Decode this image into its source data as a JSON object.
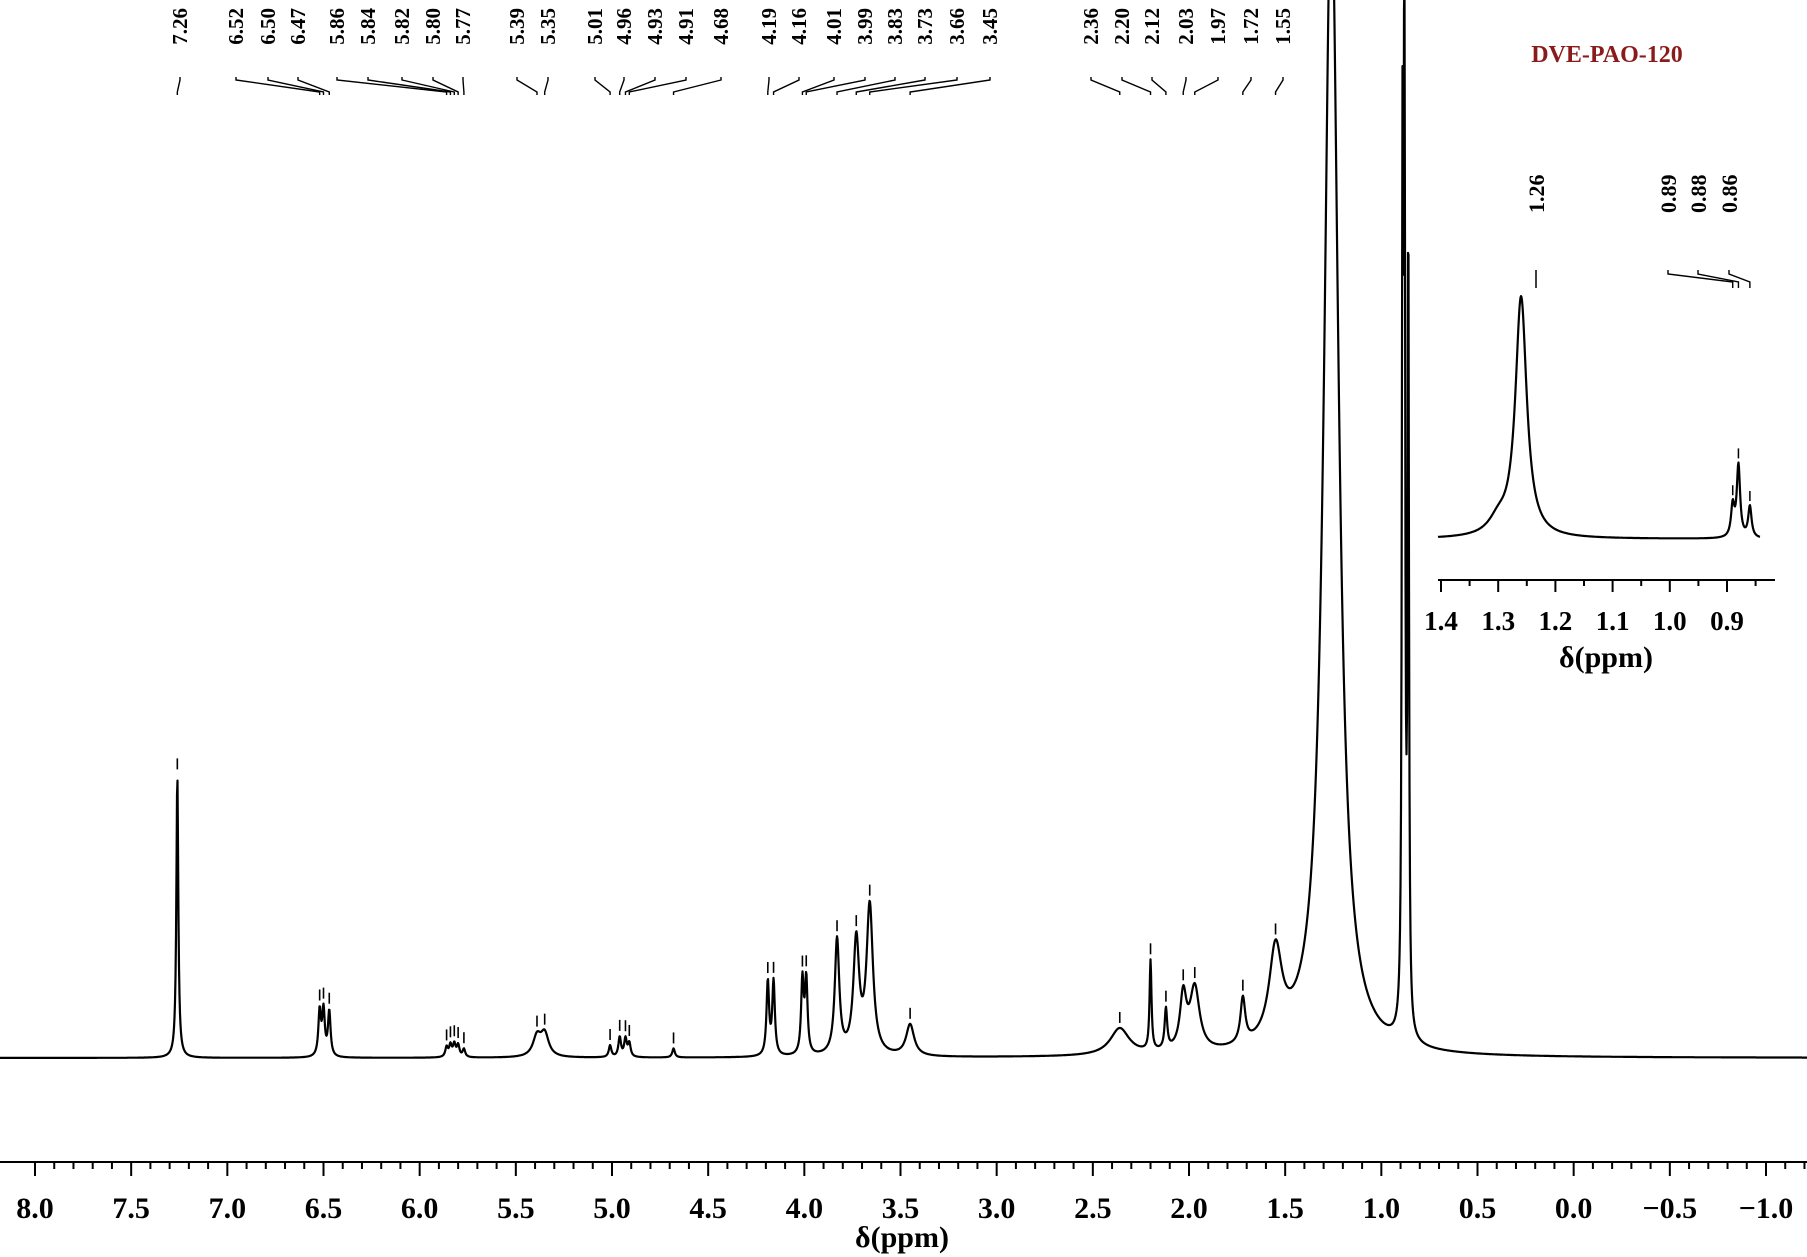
{
  "chart_data": [
    {
      "type": "line",
      "title": "DVE-PAO-120",
      "title_color": "#8b1a1a",
      "xlabel": "δ(ppm)",
      "ylabel": "",
      "x_axis_reversed": true,
      "xlim": [
        8.2,
        -1.2
      ],
      "x_ticks": [
        "8.0",
        "7.5",
        "7.0",
        "6.5",
        "6.0",
        "5.5",
        "5.0",
        "4.5",
        "4.0",
        "3.5",
        "3.0",
        "2.5",
        "2.0",
        "1.5",
        "1.0",
        "0.5",
        "0.0",
        "−0.5",
        "−1.0"
      ],
      "x_tick_values": [
        8.0,
        7.5,
        7.0,
        6.5,
        6.0,
        5.5,
        5.0,
        4.5,
        4.0,
        3.5,
        3.0,
        2.5,
        2.0,
        1.5,
        1.0,
        0.5,
        0.0,
        -0.5,
        -1.0
      ],
      "grid": false,
      "line_color": "#000000",
      "peak_labels": [
        "7.26",
        "6.52",
        "6.50",
        "6.47",
        "5.86",
        "5.84",
        "5.82",
        "5.80",
        "5.77",
        "5.39",
        "5.35",
        "5.01",
        "4.96",
        "4.93",
        "4.91",
        "4.68",
        "4.19",
        "4.16",
        "4.01",
        "3.99",
        "3.83",
        "3.73",
        "3.66",
        "3.45",
        "2.36",
        "2.20",
        "2.12",
        "2.03",
        "1.97",
        "1.72",
        "1.55"
      ],
      "peak_positions": [
        7.26,
        6.52,
        6.5,
        6.47,
        5.86,
        5.84,
        5.82,
        5.8,
        5.77,
        5.39,
        5.35,
        5.01,
        4.96,
        4.93,
        4.91,
        4.68,
        4.19,
        4.16,
        4.01,
        3.99,
        3.83,
        3.73,
        3.66,
        3.45,
        2.36,
        2.2,
        2.12,
        2.03,
        1.97,
        1.72,
        1.55
      ],
      "peaks": [
        {
          "shift": 7.26,
          "intensity": 0.315,
          "width": 0.006
        },
        {
          "shift": 6.52,
          "intensity": 0.05,
          "width": 0.008
        },
        {
          "shift": 6.5,
          "intensity": 0.05,
          "width": 0.008
        },
        {
          "shift": 6.47,
          "intensity": 0.05,
          "width": 0.008
        },
        {
          "shift": 5.86,
          "intensity": 0.011,
          "width": 0.008
        },
        {
          "shift": 5.84,
          "intensity": 0.013,
          "width": 0.008
        },
        {
          "shift": 5.82,
          "intensity": 0.014,
          "width": 0.008
        },
        {
          "shift": 5.8,
          "intensity": 0.013,
          "width": 0.008
        },
        {
          "shift": 5.77,
          "intensity": 0.009,
          "width": 0.008
        },
        {
          "shift": 5.39,
          "intensity": 0.022,
          "width": 0.025
        },
        {
          "shift": 5.35,
          "intensity": 0.025,
          "width": 0.025
        },
        {
          "shift": 5.01,
          "intensity": 0.013,
          "width": 0.008
        },
        {
          "shift": 4.96,
          "intensity": 0.022,
          "width": 0.008
        },
        {
          "shift": 4.93,
          "intensity": 0.02,
          "width": 0.008
        },
        {
          "shift": 4.91,
          "intensity": 0.015,
          "width": 0.008
        },
        {
          "shift": 4.68,
          "intensity": 0.01,
          "width": 0.008
        },
        {
          "shift": 4.19,
          "intensity": 0.082,
          "width": 0.008
        },
        {
          "shift": 4.16,
          "intensity": 0.082,
          "width": 0.008
        },
        {
          "shift": 4.01,
          "intensity": 0.082,
          "width": 0.008
        },
        {
          "shift": 3.99,
          "intensity": 0.082,
          "width": 0.008
        },
        {
          "shift": 3.83,
          "intensity": 0.128,
          "width": 0.014
        },
        {
          "shift": 3.73,
          "intensity": 0.125,
          "width": 0.018
        },
        {
          "shift": 3.66,
          "intensity": 0.165,
          "width": 0.02
        },
        {
          "shift": 3.45,
          "intensity": 0.035,
          "width": 0.025
        },
        {
          "shift": 2.36,
          "intensity": 0.03,
          "width": 0.06
        },
        {
          "shift": 2.2,
          "intensity": 0.1,
          "width": 0.006
        },
        {
          "shift": 2.12,
          "intensity": 0.045,
          "width": 0.008
        },
        {
          "shift": 2.03,
          "intensity": 0.06,
          "width": 0.02
        },
        {
          "shift": 1.97,
          "intensity": 0.07,
          "width": 0.03
        },
        {
          "shift": 1.72,
          "intensity": 0.05,
          "width": 0.015
        },
        {
          "shift": 1.55,
          "intensity": 0.1,
          "width": 0.04
        },
        {
          "shift": 1.26,
          "intensity": 1.3,
          "width": 0.045
        },
        {
          "shift": 0.89,
          "intensity": 0.9,
          "width": 0.004
        },
        {
          "shift": 0.88,
          "intensity": 1.2,
          "width": 0.004
        },
        {
          "shift": 0.86,
          "intensity": 0.9,
          "width": 0.004
        }
      ]
    },
    {
      "type": "line",
      "title": "",
      "xlabel": "δ(ppm)",
      "ylabel": "",
      "x_axis_reversed": true,
      "xlim": [
        1.42,
        0.83
      ],
      "x_ticks": [
        "1.4",
        "1.3",
        "1.2",
        "1.1",
        "1.0",
        "0.9"
      ],
      "x_tick_values": [
        1.4,
        1.3,
        1.2,
        1.1,
        1.0,
        0.9
      ],
      "grid": false,
      "line_color": "#000000",
      "peak_labels": [
        "1.26",
        "0.89",
        "0.88",
        "0.86"
      ],
      "peak_positions": [
        1.26,
        0.89,
        0.88,
        0.86
      ],
      "peaks": [
        {
          "shift": 1.26,
          "intensity": 1.0,
          "width": 0.012
        },
        {
          "shift": 1.3,
          "intensity": 0.06,
          "width": 0.02
        },
        {
          "shift": 0.89,
          "intensity": 0.13,
          "width": 0.0035
        },
        {
          "shift": 0.88,
          "intensity": 0.3,
          "width": 0.0035
        },
        {
          "shift": 0.86,
          "intensity": 0.13,
          "width": 0.0035
        }
      ]
    }
  ]
}
